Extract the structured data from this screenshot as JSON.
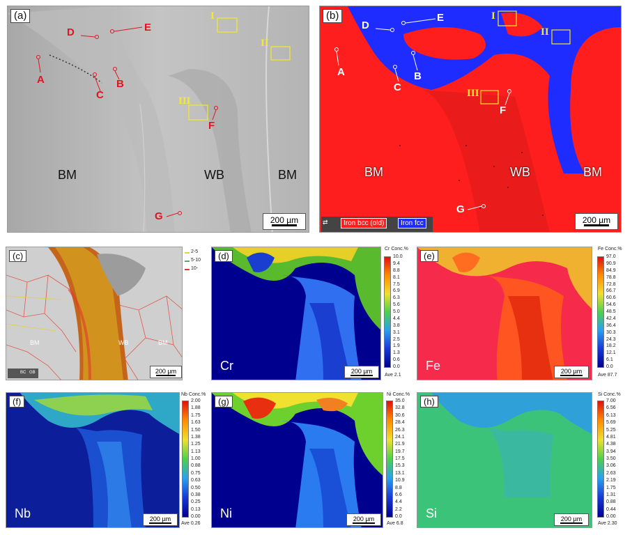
{
  "panels": {
    "a": {
      "tag": "(a)",
      "labels": [
        "BM",
        "WB",
        "BM"
      ],
      "points": [
        "A",
        "B",
        "C",
        "D",
        "E",
        "F",
        "G"
      ],
      "regions": [
        "I",
        "II",
        "III"
      ],
      "scale": "200 µm"
    },
    "b": {
      "tag": "(b)",
      "labels": [
        "BM",
        "WB",
        "BM"
      ],
      "points": [
        "A",
        "B",
        "C",
        "D",
        "E",
        "F",
        "G"
      ],
      "regions": [
        "I",
        "II",
        "III"
      ],
      "scale": "200 µm",
      "legend": [
        "Iron bcc (old)",
        "Iron fcc"
      ],
      "legend_colors": [
        "#ff1e1e",
        "#1e2cff"
      ]
    },
    "c": {
      "tag": "(c)",
      "labels": [
        "BM",
        "WB",
        "BM"
      ],
      "scale": "200 µm",
      "gb_legend": [
        "2-5",
        "5-10",
        "10-"
      ],
      "gb_colors": [
        "#e6d23a",
        "#3fbf3f",
        "#e03a2a"
      ],
      "corner": [
        "BC",
        "GB"
      ]
    },
    "d": {
      "tag": "(d)",
      "element": "Cr",
      "scale": "200 µm",
      "cbar": {
        "title": "Cr  Conc.%",
        "ticks": [
          "10.0",
          "9.4",
          "8.8",
          "8.1",
          "7.5",
          "6.9",
          "6.3",
          "5.6",
          "5.0",
          "4.4",
          "3.8",
          "3.1",
          "2.5",
          "1.9",
          "1.3",
          "0.6",
          "0.0"
        ],
        "ave": "Ave 2.1"
      }
    },
    "e": {
      "tag": "(e)",
      "element": "Fe",
      "scale": "200 µm",
      "cbar": {
        "title": "Fe  Conc.%",
        "ticks": [
          "97.0",
          "90.9",
          "84.9",
          "78.8",
          "72.8",
          "66.7",
          "60.6",
          "54.6",
          "48.5",
          "42.4",
          "36.4",
          "30.3",
          "24.3",
          "18.2",
          "12.1",
          "6.1",
          "0.0"
        ],
        "ave": "Ave 87.7"
      }
    },
    "f": {
      "tag": "(f)",
      "element": "Nb",
      "scale": "200 µm",
      "cbar": {
        "title": "Nb  Conc.%",
        "ticks": [
          "2.00",
          "1.88",
          "1.75",
          "1.63",
          "1.50",
          "1.38",
          "1.25",
          "1.13",
          "1.00",
          "0.88",
          "0.75",
          "0.63",
          "0.50",
          "0.38",
          "0.25",
          "0.13",
          "0.00"
        ],
        "ave": "Ave 0.26"
      }
    },
    "g": {
      "tag": "(g)",
      "element": "Ni",
      "scale": "200 µm",
      "cbar": {
        "title": "Ni  Conc.%",
        "ticks": [
          "35.0",
          "32.8",
          "30.6",
          "28.4",
          "26.3",
          "24.1",
          "21.9",
          "19.7",
          "17.5",
          "15.3",
          "13.1",
          "10.9",
          "8.8",
          "6.6",
          "4.4",
          "2.2",
          "0.0"
        ],
        "ave": "Ave 6.8"
      }
    },
    "h": {
      "tag": "(h)",
      "element": "Si",
      "scale": "200 µm",
      "cbar": {
        "title": "Si  Conc.%",
        "ticks": [
          "7.00",
          "6.56",
          "6.13",
          "5.69",
          "5.25",
          "4.81",
          "4.38",
          "3.94",
          "3.50",
          "3.06",
          "2.63",
          "2.19",
          "1.75",
          "1.31",
          "0.88",
          "0.44",
          "0.00"
        ],
        "ave": "Ave 2.30"
      }
    }
  },
  "colors": {
    "marker_red": "#e0141e",
    "region_yellow": "#f6e92a",
    "jet_low": "#00008f",
    "jet_high": "#e01010"
  }
}
